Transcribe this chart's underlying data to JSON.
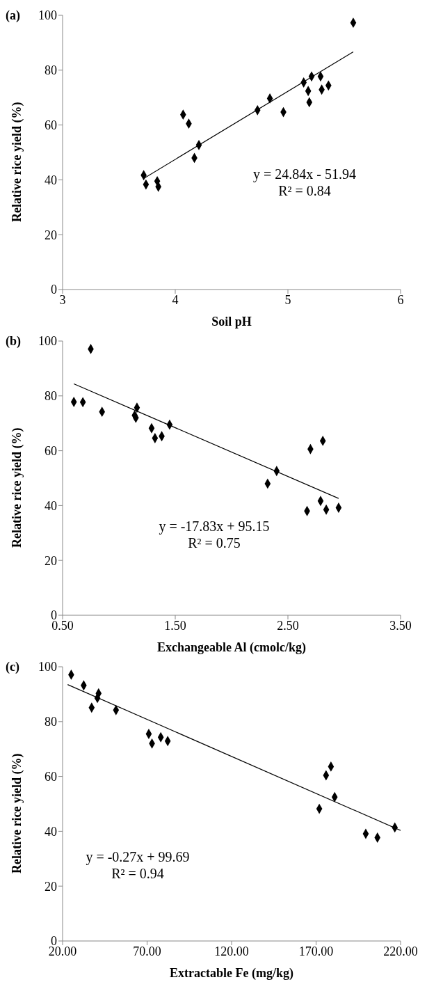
{
  "chart_data": [
    {
      "type": "scatter",
      "title": "(a)",
      "xlabel": "Soil pH",
      "ylabel": "Relative rice yield (%)",
      "xlim": [
        3,
        6
      ],
      "xticks": [
        3,
        4,
        5,
        6
      ],
      "ylim": [
        0,
        100
      ],
      "yticks": [
        0,
        20,
        40,
        60,
        80,
        100
      ],
      "series": [
        {
          "type": "scatter",
          "color": "#000000",
          "marker": "diamond",
          "x": [
            3.72,
            3.74,
            3.84,
            3.85,
            4.07,
            4.12,
            4.21,
            4.17,
            4.73,
            4.84,
            4.96,
            5.14,
            5.21,
            5.18,
            5.19,
            5.29,
            5.3,
            5.36,
            5.58
          ],
          "values": [
            41.7,
            38.3,
            39.5,
            37.5,
            63.8,
            60.5,
            52.7,
            48.0,
            65.4,
            69.7,
            64.7,
            75.5,
            77.7,
            72.4,
            68.3,
            77.7,
            72.9,
            74.4,
            97.3
          ]
        },
        {
          "type": "line",
          "color": "#000000",
          "marker": "none",
          "line_style": "solid",
          "x": [
            3.72,
            5.58
          ],
          "values": [
            40.5,
            86.7
          ]
        }
      ],
      "annotations": [
        "y = 24.84x - 51.94",
        "R² = 0.84"
      ]
    },
    {
      "type": "scatter",
      "title": "(b)",
      "xlabel": "Exchangeable Al (cmolc/kg)",
      "ylabel": "Relative rice yield (%)",
      "xlim": [
        0.5,
        3.5
      ],
      "xticks": [
        {
          "value": 0.5,
          "label": "0.50"
        },
        {
          "value": 1.5,
          "label": "1.50"
        },
        {
          "value": 2.5,
          "label": "2.50"
        },
        {
          "value": 3.5,
          "label": "3.50"
        }
      ],
      "ylim": [
        0,
        100
      ],
      "yticks": [
        0,
        20,
        40,
        60,
        80,
        100
      ],
      "series": [
        {
          "type": "scatter",
          "color": "#000000",
          "marker": "diamond",
          "x": [
            0.6,
            0.68,
            0.75,
            0.85,
            1.16,
            1.14,
            1.15,
            1.29,
            1.32,
            1.38,
            1.45,
            2.32,
            2.4,
            2.7,
            2.81,
            2.67,
            2.79,
            2.84,
            2.95
          ],
          "values": [
            77.8,
            77.7,
            97.1,
            74.2,
            75.7,
            72.9,
            72.0,
            68.2,
            64.6,
            65.3,
            69.5,
            48.0,
            52.6,
            60.6,
            63.6,
            38.0,
            41.7,
            38.5,
            39.2
          ]
        },
        {
          "type": "line",
          "color": "#000000",
          "marker": "none",
          "line_style": "solid",
          "x": [
            0.6,
            2.95
          ],
          "values": [
            84.4,
            42.6
          ]
        }
      ],
      "annotations": [
        "y = -17.83x + 95.15",
        "R² = 0.75"
      ]
    },
    {
      "type": "scatter",
      "title": "(c)",
      "xlabel": "Extractable Fe (mg/kg)",
      "ylabel": "Relative rice yield (%)",
      "xlim": [
        20,
        220
      ],
      "xticks": [
        {
          "value": 20,
          "label": "20.00"
        },
        {
          "value": 70,
          "label": "70.00"
        },
        {
          "value": 120,
          "label": "120.00"
        },
        {
          "value": 170,
          "label": "170.00"
        },
        {
          "value": 220,
          "label": "220.00"
        }
      ],
      "ylim": [
        0,
        100
      ],
      "yticks": [
        0,
        20,
        40,
        60,
        80,
        100
      ],
      "series": [
        {
          "type": "scatter",
          "color": "#000000",
          "marker": "diamond",
          "x": [
            25.1,
            32.5,
            37.2,
            41.3,
            40.6,
            51.6,
            71.0,
            72.9,
            78.1,
            82.2,
            171.9,
            175.9,
            178.8,
            181.0,
            199.4,
            206.3,
            216.6
          ],
          "values": [
            97.1,
            93.2,
            85.1,
            90.3,
            88.6,
            84.2,
            75.5,
            72.0,
            74.3,
            72.9,
            48.2,
            60.4,
            63.6,
            52.5,
            39.1,
            37.7,
            41.4
          ]
        },
        {
          "type": "line",
          "color": "#000000",
          "marker": "none",
          "line_style": "solid",
          "x": [
            23,
            220
          ],
          "values": [
            93.5,
            40.3
          ]
        }
      ],
      "annotations": [
        "y = -0.27x + 99.69",
        "R² = 0.94"
      ]
    }
  ]
}
